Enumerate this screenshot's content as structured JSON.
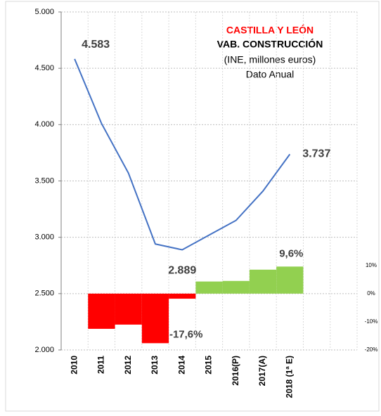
{
  "chart_data": {
    "type": "line",
    "title": "CASTILLA Y LEÓN",
    "subtitle": [
      "VAB. CONSTRUCCIÓN",
      "(INE, millones euros)",
      "Dato Anual"
    ],
    "categories": [
      "2010",
      "2011",
      "2012",
      "2013",
      "2014",
      "2015",
      "2016(P)",
      "2017(A)",
      "2018 (1ª E)",
      null,
      null
    ],
    "series": [
      {
        "type": "line",
        "color": "#4472c4",
        "values": [
          4583,
          4010,
          3570,
          2940,
          2889,
          3020,
          3150,
          3410,
          3737,
          null,
          null
        ],
        "value_labels": [
          "4.583",
          null,
          null,
          null,
          "2.889",
          null,
          null,
          null,
          "3.737",
          null,
          null
        ]
      },
      {
        "type": "bar",
        "axis": "y2",
        "colors": [
          "#ff0000",
          "#92d050"
        ],
        "values": [
          null,
          -12.5,
          -11,
          -17.6,
          -1.8,
          4.3,
          4.5,
          8.5,
          9.6,
          null,
          null
        ],
        "value_labels": [
          null,
          null,
          null,
          "-17,6%",
          null,
          null,
          null,
          null,
          "9,6%",
          null,
          null
        ]
      }
    ],
    "ylim": [
      2000,
      5000
    ],
    "yticks": [
      {
        "value": 2000,
        "label": "2.000"
      },
      {
        "value": 2500,
        "label": "2.500"
      },
      {
        "value": 3000,
        "label": "3.000"
      },
      {
        "value": 3500,
        "label": "3.500"
      },
      {
        "value": 4000,
        "label": "4.000"
      },
      {
        "value": 4500,
        "label": "4.500"
      },
      {
        "value": 5000,
        "label": "5.000"
      }
    ],
    "y2lim": [
      -20,
      100
    ],
    "y2ticks": [
      {
        "value": -20,
        "label": "-20%"
      },
      {
        "value": -10,
        "label": "-10%"
      },
      {
        "value": 0,
        "label": "0%"
      },
      {
        "value": 10,
        "label": "10%"
      }
    ],
    "grid": true
  }
}
